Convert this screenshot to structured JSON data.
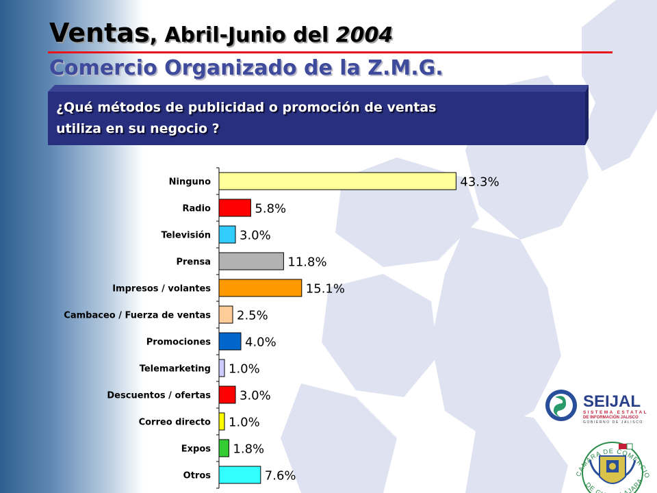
{
  "title": {
    "word": "Ventas",
    "rest": ", Abril-Junio del ",
    "year": "2004"
  },
  "subtitle": "Comercio Organizado de la Z.M.G.",
  "question": {
    "line1": "¿Qué métodos de publicidad o promoción de ventas",
    "line2": "utiliza en su negocio ?"
  },
  "chart_data": {
    "type": "bar",
    "orientation": "horizontal",
    "title": "",
    "xlabel": "",
    "ylabel": "",
    "xlim": [
      0,
      50
    ],
    "grid": false,
    "legend": "none",
    "categories": [
      "Ninguno",
      "Radio",
      "Televisión",
      "Prensa",
      "Impresos / volantes",
      "Cambaceo / Fuerza de ventas",
      "Promociones",
      "Telemarketing",
      "Descuentos / ofertas",
      "Correo directo",
      "Expos",
      "Otros"
    ],
    "values": [
      43.3,
      5.8,
      3.0,
      11.8,
      15.1,
      2.5,
      4.0,
      1.0,
      3.0,
      1.0,
      1.8,
      7.6
    ],
    "value_labels": [
      "43.3%",
      "5.8%",
      "3.0%",
      "11.8%",
      "15.1%",
      "2.5%",
      "4.0%",
      "1.0%",
      "3.0%",
      "1.0%",
      "1.8%",
      "7.6%"
    ],
    "colors": [
      "#ffff99",
      "#ff0000",
      "#33ccff",
      "#b2b2b2",
      "#ff9900",
      "#ffcc99",
      "#0066cc",
      "#ccccff",
      "#ff0000",
      "#ffff00",
      "#33cc33",
      "#33ffff"
    ]
  },
  "logos": {
    "seijal": {
      "name": "SEIJAL",
      "line1": "SISTEMA ESTATAL",
      "line2": "DE INFORMACIÓN JALISCO",
      "line3": "GOBIERNO DE JALISCO"
    },
    "camara": {
      "top_text": "CAMARA DE COMERCIO",
      "bottom_text": "DE GUADALAJARA"
    }
  }
}
